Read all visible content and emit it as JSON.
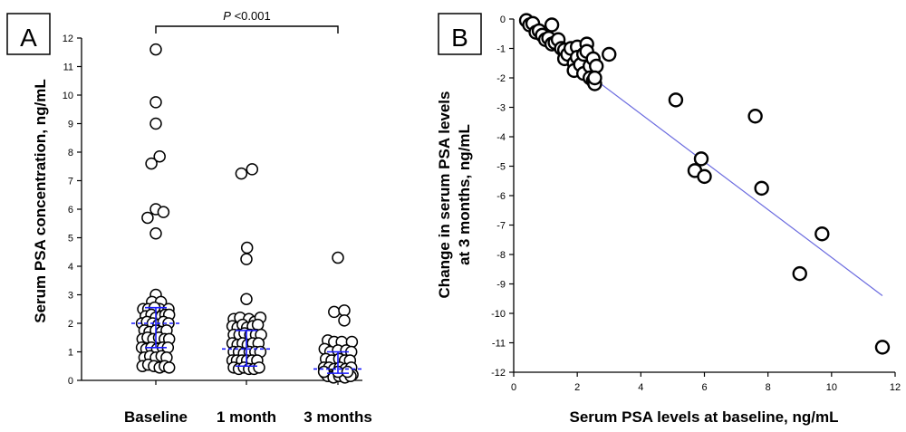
{
  "figure": {
    "panel_a_label": "A",
    "panel_b_label": "B"
  },
  "chart_data": [
    {
      "type": "scatter",
      "panel": "A",
      "ylabel": "Serum PSA concentration, ng/mL",
      "ylim": [
        0,
        12
      ],
      "yticks": [
        "0",
        "1",
        "2",
        "3",
        "4",
        "5",
        "6",
        "7",
        "8",
        "9",
        "10",
        "11",
        "12"
      ],
      "categories": [
        "Baseline",
        "1 month",
        "3 months"
      ],
      "annotation": {
        "italic": "P",
        "text": " <0.001"
      },
      "summary_color": "#1a1aff",
      "groups": [
        {
          "category": "Baseline",
          "median": 2.0,
          "q1": 1.15,
          "q3": 2.55,
          "points": [
            [
              0.0,
              11.6
            ],
            [
              0.0,
              9.75
            ],
            [
              0.0,
              9.0
            ],
            [
              0.3,
              7.85
            ],
            [
              -0.35,
              7.6
            ],
            [
              0.0,
              6.0
            ],
            [
              0.6,
              5.9
            ],
            [
              -0.65,
              5.7
            ],
            [
              0.0,
              5.15
            ],
            [
              0.0,
              3.0
            ],
            [
              -0.3,
              2.75
            ],
            [
              0.4,
              2.75
            ],
            [
              -1.0,
              2.5
            ],
            [
              -0.6,
              2.5
            ],
            [
              0.3,
              2.5
            ],
            [
              1.0,
              2.5
            ],
            [
              -0.1,
              2.55
            ],
            [
              -0.8,
              2.25
            ],
            [
              -0.35,
              2.3
            ],
            [
              0.0,
              2.2
            ],
            [
              0.45,
              2.25
            ],
            [
              0.75,
              2.3
            ],
            [
              1.05,
              2.3
            ],
            [
              -1.1,
              2.0
            ],
            [
              -0.7,
              2.05
            ],
            [
              -0.25,
              2.0
            ],
            [
              0.2,
              1.95
            ],
            [
              0.6,
              2.05
            ],
            [
              1.0,
              2.0
            ],
            [
              -0.9,
              1.75
            ],
            [
              -0.5,
              1.7
            ],
            [
              0.0,
              1.75
            ],
            [
              0.45,
              1.7
            ],
            [
              0.85,
              1.75
            ],
            [
              -1.05,
              1.45
            ],
            [
              -0.65,
              1.5
            ],
            [
              -0.2,
              1.45
            ],
            [
              0.25,
              1.5
            ],
            [
              0.7,
              1.45
            ],
            [
              1.05,
              1.45
            ],
            [
              -1.1,
              1.15
            ],
            [
              -0.75,
              1.1
            ],
            [
              -0.35,
              1.15
            ],
            [
              0.1,
              1.1
            ],
            [
              0.55,
              1.15
            ],
            [
              0.95,
              1.15
            ],
            [
              -0.9,
              0.8
            ],
            [
              -0.45,
              0.85
            ],
            [
              0.0,
              0.8
            ],
            [
              0.45,
              0.85
            ],
            [
              0.85,
              0.8
            ],
            [
              -1.05,
              0.5
            ],
            [
              -0.6,
              0.55
            ],
            [
              -0.15,
              0.5
            ],
            [
              0.3,
              0.45
            ],
            [
              0.7,
              0.5
            ],
            [
              1.05,
              0.45
            ]
          ]
        },
        {
          "category": "1 month",
          "median": 1.1,
          "q1": 0.5,
          "q3": 1.75,
          "points": [
            [
              0.45,
              7.4
            ],
            [
              -0.4,
              7.25
            ],
            [
              0.05,
              4.65
            ],
            [
              0.0,
              4.25
            ],
            [
              0.0,
              2.85
            ],
            [
              -1.0,
              2.15
            ],
            [
              -0.5,
              2.2
            ],
            [
              0.2,
              2.15
            ],
            [
              0.65,
              2.05
            ],
            [
              1.1,
              2.2
            ],
            [
              -1.1,
              1.9
            ],
            [
              -0.7,
              1.85
            ],
            [
              -0.3,
              1.95
            ],
            [
              0.05,
              1.85
            ],
            [
              0.5,
              1.9
            ],
            [
              0.9,
              1.95
            ],
            [
              -1.0,
              1.6
            ],
            [
              -0.55,
              1.6
            ],
            [
              -0.15,
              1.65
            ],
            [
              0.3,
              1.6
            ],
            [
              0.75,
              1.6
            ],
            [
              1.15,
              1.6
            ],
            [
              -1.1,
              1.3
            ],
            [
              -0.7,
              1.25
            ],
            [
              -0.3,
              1.3
            ],
            [
              0.1,
              1.25
            ],
            [
              0.5,
              1.3
            ],
            [
              0.95,
              1.3
            ],
            [
              -1.0,
              1.0
            ],
            [
              -0.6,
              1.0
            ],
            [
              -0.2,
              0.95
            ],
            [
              0.25,
              1.0
            ],
            [
              0.7,
              1.0
            ],
            [
              1.1,
              1.0
            ],
            [
              -1.1,
              0.7
            ],
            [
              -0.75,
              0.7
            ],
            [
              -0.35,
              0.7
            ],
            [
              0.05,
              0.7
            ],
            [
              0.45,
              0.7
            ],
            [
              0.85,
              0.7
            ],
            [
              -1.0,
              0.45
            ],
            [
              -0.6,
              0.4
            ],
            [
              -0.2,
              0.45
            ],
            [
              0.2,
              0.4
            ],
            [
              0.6,
              0.4
            ],
            [
              1.0,
              0.45
            ]
          ]
        },
        {
          "category": "3 months",
          "median": 0.4,
          "q1": 0.25,
          "q3": 1.0,
          "points": [
            [
              0.0,
              4.3
            ],
            [
              -0.3,
              2.4
            ],
            [
              0.5,
              2.45
            ],
            [
              0.5,
              2.1
            ],
            [
              -0.8,
              1.4
            ],
            [
              -0.3,
              1.35
            ],
            [
              0.3,
              1.35
            ],
            [
              1.1,
              1.35
            ],
            [
              -1.05,
              1.1
            ],
            [
              -0.6,
              1.0
            ],
            [
              0.0,
              1.05
            ],
            [
              0.65,
              1.05
            ],
            [
              1.05,
              1.0
            ],
            [
              -0.95,
              0.75
            ],
            [
              -0.5,
              0.7
            ],
            [
              0.1,
              0.75
            ],
            [
              0.55,
              0.7
            ],
            [
              0.95,
              0.7
            ],
            [
              -1.1,
              0.45
            ],
            [
              -0.7,
              0.45
            ],
            [
              -0.3,
              0.4
            ],
            [
              0.15,
              0.45
            ],
            [
              0.6,
              0.4
            ],
            [
              1.05,
              0.45
            ],
            [
              -1.0,
              0.25
            ],
            [
              -0.55,
              0.2
            ],
            [
              -0.1,
              0.25
            ],
            [
              0.35,
              0.2
            ],
            [
              0.8,
              0.25
            ],
            [
              1.15,
              0.2
            ],
            [
              -0.8,
              0.15
            ],
            [
              -0.35,
              0.1
            ],
            [
              0.1,
              0.15
            ],
            [
              0.55,
              0.1
            ],
            [
              1.0,
              0.15
            ],
            [
              -1.1,
              0.3
            ],
            [
              0.0,
              0.3
            ],
            [
              0.75,
              0.3
            ]
          ]
        }
      ]
    },
    {
      "type": "scatter",
      "panel": "B",
      "xlabel": "Serum PSA levels at baseline, ng/mL",
      "ylabel_lines": [
        "Change in serum PSA levels",
        "at 3 months, ng/mL"
      ],
      "xlim": [
        0,
        12
      ],
      "ylim": [
        -12,
        0
      ],
      "xticks": [
        "0",
        "2",
        "4",
        "6",
        "8",
        "10",
        "12"
      ],
      "yticks": [
        "0",
        "-1",
        "-2",
        "-3",
        "-4",
        "-5",
        "-6",
        "-7",
        "-8",
        "-9",
        "-10",
        "-11",
        "-12"
      ],
      "regression_color": "#6b6bdf",
      "regression": {
        "x": [
          0.4,
          11.6
        ],
        "y": [
          -0.3,
          -9.4
        ]
      },
      "points": [
        [
          0.4,
          -0.05
        ],
        [
          0.5,
          -0.2
        ],
        [
          0.6,
          -0.15
        ],
        [
          0.7,
          -0.45
        ],
        [
          0.8,
          -0.4
        ],
        [
          0.9,
          -0.55
        ],
        [
          1.0,
          -0.7
        ],
        [
          1.1,
          -0.65
        ],
        [
          1.2,
          -0.2
        ],
        [
          1.2,
          -0.85
        ],
        [
          1.3,
          -0.8
        ],
        [
          1.4,
          -0.7
        ],
        [
          1.5,
          -1.0
        ],
        [
          1.6,
          -1.05
        ],
        [
          1.6,
          -1.35
        ],
        [
          1.7,
          -1.2
        ],
        [
          1.8,
          -1.0
        ],
        [
          1.9,
          -1.5
        ],
        [
          1.9,
          -1.75
        ],
        [
          2.0,
          -0.95
        ],
        [
          2.0,
          -1.3
        ],
        [
          2.1,
          -1.55
        ],
        [
          2.2,
          -1.2
        ],
        [
          2.2,
          -1.85
        ],
        [
          2.3,
          -0.85
        ],
        [
          2.3,
          -1.1
        ],
        [
          2.4,
          -1.6
        ],
        [
          2.4,
          -2.0
        ],
        [
          2.5,
          -1.35
        ],
        [
          2.5,
          -2.1
        ],
        [
          2.55,
          -2.2
        ],
        [
          2.6,
          -1.6
        ],
        [
          2.55,
          -2.0
        ],
        [
          3.0,
          -1.2
        ],
        [
          5.1,
          -2.75
        ],
        [
          5.7,
          -5.15
        ],
        [
          5.9,
          -4.75
        ],
        [
          6.0,
          -5.35
        ],
        [
          7.6,
          -3.3
        ],
        [
          7.8,
          -5.75
        ],
        [
          9.0,
          -8.65
        ],
        [
          9.7,
          -7.3
        ],
        [
          11.6,
          -11.15
        ]
      ]
    }
  ]
}
